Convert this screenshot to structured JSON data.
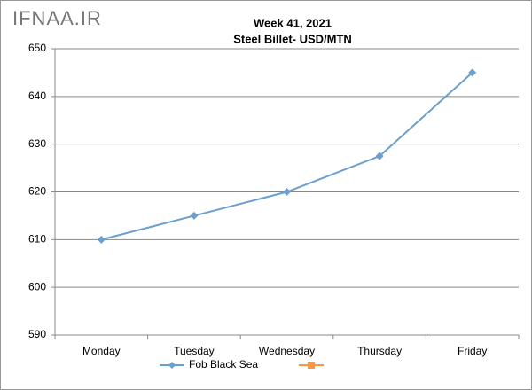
{
  "chart_data": {
    "type": "line",
    "watermark": "IFNAA.IR",
    "title": "Week 41, 2021",
    "subtitle": "Steel Billet- USD/MTN",
    "categories": [
      "Monday",
      "Tuesday",
      "Wednesday",
      "Thursday",
      "Friday"
    ],
    "series": [
      {
        "name": "Fob Black Sea",
        "color": "#6a9fcf",
        "values": [
          610,
          615,
          620,
          627.5,
          645
        ]
      }
    ],
    "ylim": [
      590,
      650
    ],
    "yticks": [
      590,
      600,
      610,
      620,
      630,
      640,
      650
    ],
    "grid": true,
    "legend": "bottom"
  }
}
